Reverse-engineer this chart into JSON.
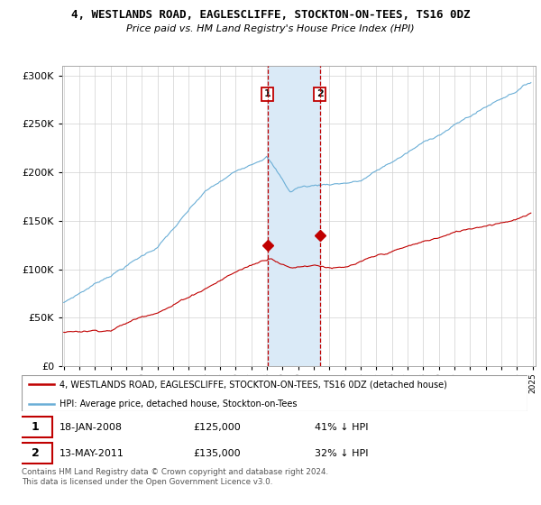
{
  "title": "4, WESTLANDS ROAD, EAGLESCLIFFE, STOCKTON-ON-TEES, TS16 0DZ",
  "subtitle": "Price paid vs. HM Land Registry's House Price Index (HPI)",
  "legend_line1": "4, WESTLANDS ROAD, EAGLESCLIFFE, STOCKTON-ON-TEES, TS16 0DZ (detached house)",
  "legend_line2": "HPI: Average price, detached house, Stockton-on-Tees",
  "transaction1_date": "18-JAN-2008",
  "transaction1_price": "£125,000",
  "transaction1_hpi": "41% ↓ HPI",
  "transaction2_date": "13-MAY-2011",
  "transaction2_price": "£135,000",
  "transaction2_hpi": "32% ↓ HPI",
  "footnote": "Contains HM Land Registry data © Crown copyright and database right 2024.\nThis data is licensed under the Open Government Licence v3.0.",
  "hpi_color": "#6aaed6",
  "price_color": "#c00000",
  "shade_color": "#daeaf7",
  "marker1_x": 2008.05,
  "marker1_y": 125000,
  "marker2_x": 2011.38,
  "marker2_y": 135000,
  "ylim": [
    0,
    310000
  ],
  "xlim_start": 1995,
  "xlim_end": 2025
}
